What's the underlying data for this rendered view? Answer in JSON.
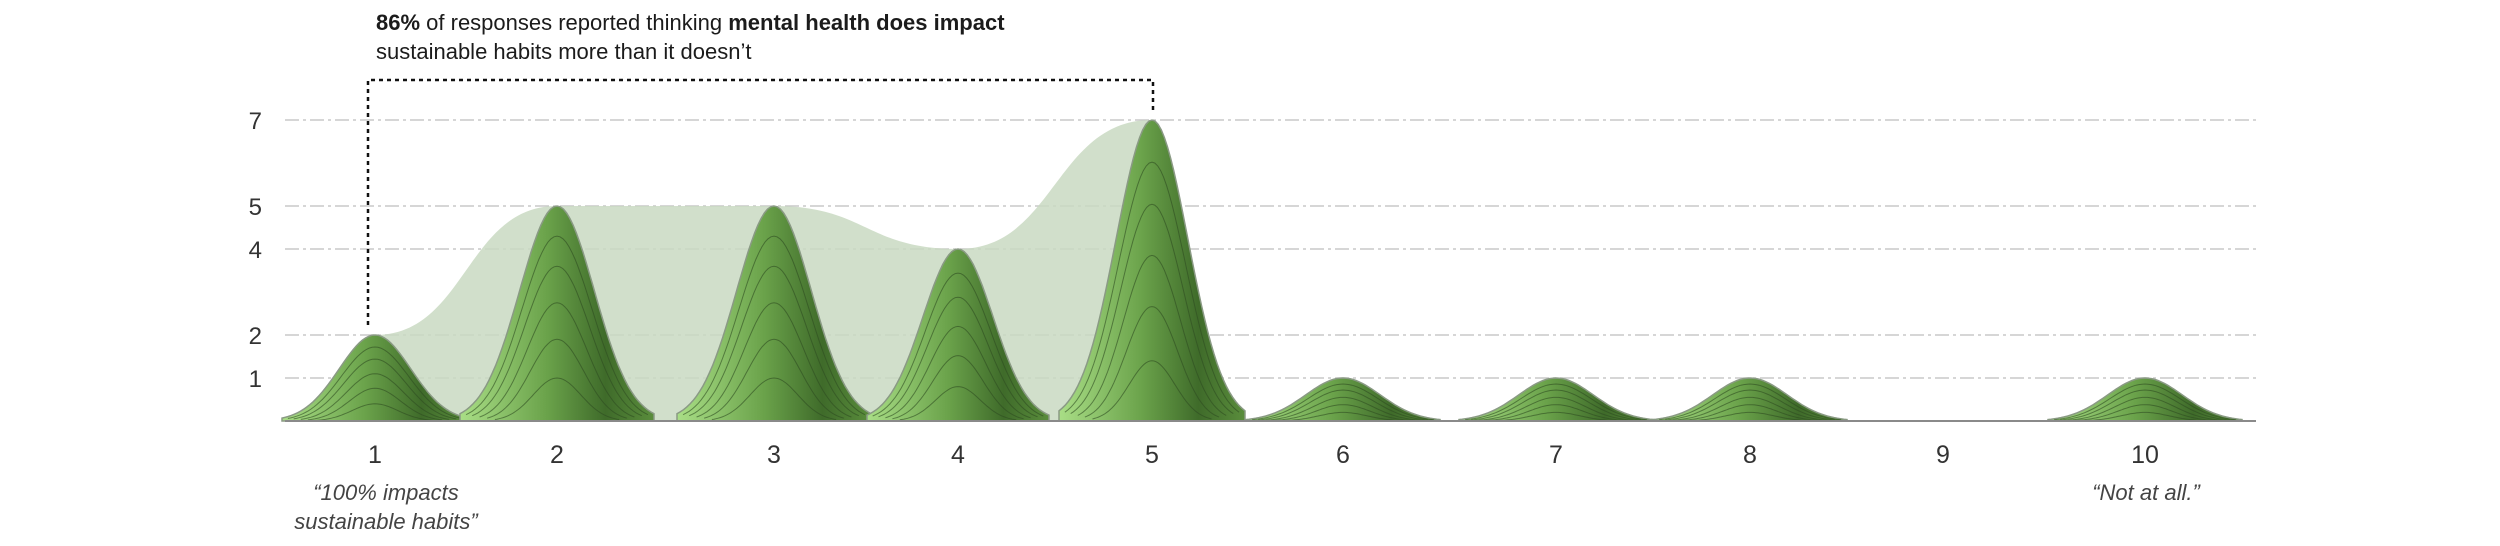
{
  "annotation": {
    "pct": "86%",
    "text1": " of responses reported thinking ",
    "bold": "mental health does impact",
    "text2": "sustainable habits more than it doesn’t"
  },
  "end_labels": {
    "left": "“100% impacts sustainable habits”",
    "right": "“Not at all.”"
  },
  "colors": {
    "peak_dark": "#3f6b2a",
    "peak_light": "#a9de86",
    "envelope": "#c9d9c2",
    "grid": "#c8c8c8"
  },
  "chart_data": {
    "type": "area",
    "categories": [
      "1",
      "2",
      "3",
      "4",
      "5",
      "6",
      "7",
      "8",
      "9",
      "10"
    ],
    "values": [
      2,
      5,
      5,
      4,
      7,
      1,
      1,
      1,
      0,
      1
    ],
    "yticks": [
      1,
      2,
      4,
      5,
      7
    ],
    "ylim": [
      0,
      7
    ],
    "grid": true,
    "highlight_range": [
      "1",
      "5"
    ],
    "highlight_note": "86%"
  }
}
